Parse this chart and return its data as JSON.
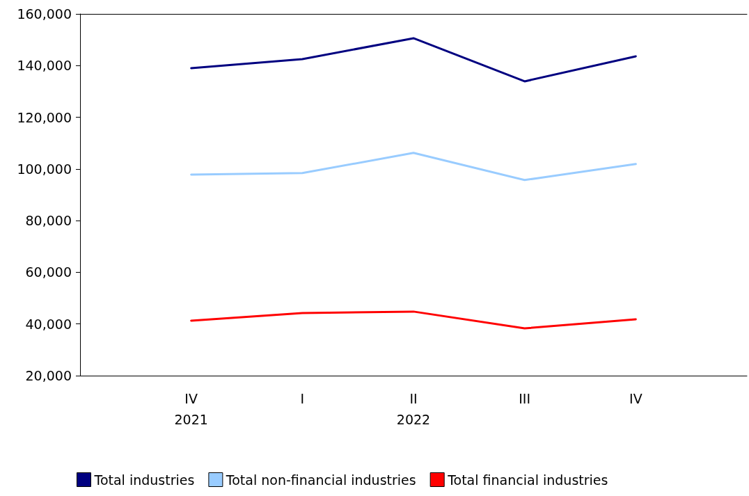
{
  "chart_data": {
    "type": "line",
    "categories": [
      null,
      "IV\n2021",
      "I",
      "II\n2022",
      "III",
      "IV",
      null
    ],
    "series": [
      {
        "name": "Total industries",
        "color": "#000080",
        "values": [
          null,
          139000,
          142500,
          150600,
          133900,
          143600,
          null
        ]
      },
      {
        "name": "Total non-financial industries",
        "color": "#99ccff",
        "values": [
          null,
          97800,
          98400,
          106200,
          95700,
          101900,
          null
        ]
      },
      {
        "name": "Total financial industries",
        "color": "#ff0000",
        "values": [
          null,
          41300,
          44200,
          44800,
          38300,
          41800,
          null
        ]
      }
    ],
    "ylim": [
      20000,
      160000
    ],
    "yticks": [
      {
        "value": 20000,
        "label": "20,000"
      },
      {
        "value": 40000,
        "label": "40,000"
      },
      {
        "value": 60000,
        "label": "60,000"
      },
      {
        "value": 80000,
        "label": "80,000"
      },
      {
        "value": 100000,
        "label": "100,000"
      },
      {
        "value": 120000,
        "label": "120,000"
      },
      {
        "value": 140000,
        "label": "140,000"
      },
      {
        "value": 160000,
        "label": "160,000"
      }
    ],
    "grid": false,
    "legend": "bottom",
    "marker": "none",
    "line_style": "solid"
  }
}
